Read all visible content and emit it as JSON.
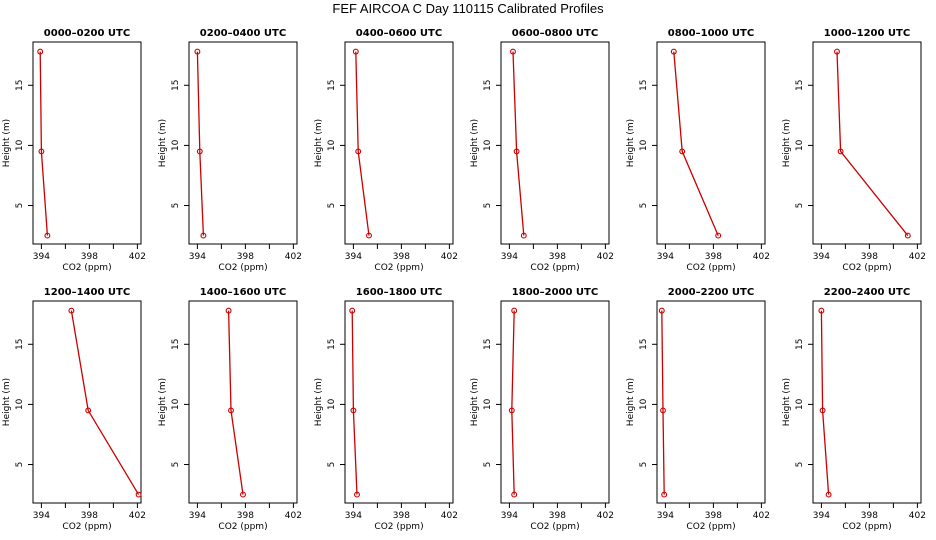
{
  "title": "FEF AIRCOA C  Day 110115  Calibrated Profiles",
  "chart_data": {
    "type": "line",
    "xlabel": "CO2 (ppm)",
    "ylabel": "Height (m)",
    "xlim": [
      393.3,
      402.3
    ],
    "ylim": [
      1.8,
      18.6
    ],
    "xticks": [
      394,
      396,
      398,
      400,
      402
    ],
    "xtick_labels": [
      "394",
      "398",
      "402"
    ],
    "yticks": [
      5,
      10,
      15
    ],
    "yticks_labels": [
      "5",
      "10",
      "15"
    ],
    "line_color": "#cc0000",
    "panels": [
      {
        "title": "0000–0200 UTC",
        "heights": [
          17.8,
          9.5,
          2.5
        ],
        "co2": [
          393.9,
          394.0,
          394.5
        ]
      },
      {
        "title": "0200–0400 UTC",
        "heights": [
          17.8,
          9.5,
          2.5
        ],
        "co2": [
          394.0,
          394.2,
          394.5
        ]
      },
      {
        "title": "0400–0600 UTC",
        "heights": [
          17.8,
          9.5,
          2.5
        ],
        "co2": [
          394.2,
          394.4,
          395.3
        ]
      },
      {
        "title": "0600–0800 UTC",
        "heights": [
          17.8,
          9.5,
          2.5
        ],
        "co2": [
          394.3,
          394.6,
          395.2
        ]
      },
      {
        "title": "0800–1000 UTC",
        "heights": [
          17.8,
          9.5,
          2.5
        ],
        "co2": [
          394.7,
          395.4,
          398.4
        ]
      },
      {
        "title": "1000–1200 UTC",
        "heights": [
          17.8,
          9.5,
          2.5
        ],
        "co2": [
          395.3,
          395.6,
          401.2
        ]
      },
      {
        "title": "1200–1400 UTC",
        "heights": [
          17.8,
          9.5,
          2.5
        ],
        "co2": [
          396.5,
          397.9,
          402.1
        ]
      },
      {
        "title": "1400–1600 UTC",
        "heights": [
          17.8,
          9.5,
          2.5
        ],
        "co2": [
          396.6,
          396.8,
          397.8
        ]
      },
      {
        "title": "1600–1800 UTC",
        "heights": [
          17.8,
          9.5,
          2.5
        ],
        "co2": [
          393.9,
          394.0,
          394.3
        ]
      },
      {
        "title": "1800–2000 UTC",
        "heights": [
          17.8,
          9.5,
          2.5
        ],
        "co2": [
          394.4,
          394.2,
          394.4
        ]
      },
      {
        "title": "2000–2200 UTC",
        "heights": [
          17.8,
          9.5,
          2.5
        ],
        "co2": [
          393.7,
          393.8,
          393.9
        ]
      },
      {
        "title": "2200–2400 UTC",
        "heights": [
          17.8,
          9.5,
          2.5
        ],
        "co2": [
          394.0,
          394.1,
          394.6
        ]
      }
    ]
  }
}
